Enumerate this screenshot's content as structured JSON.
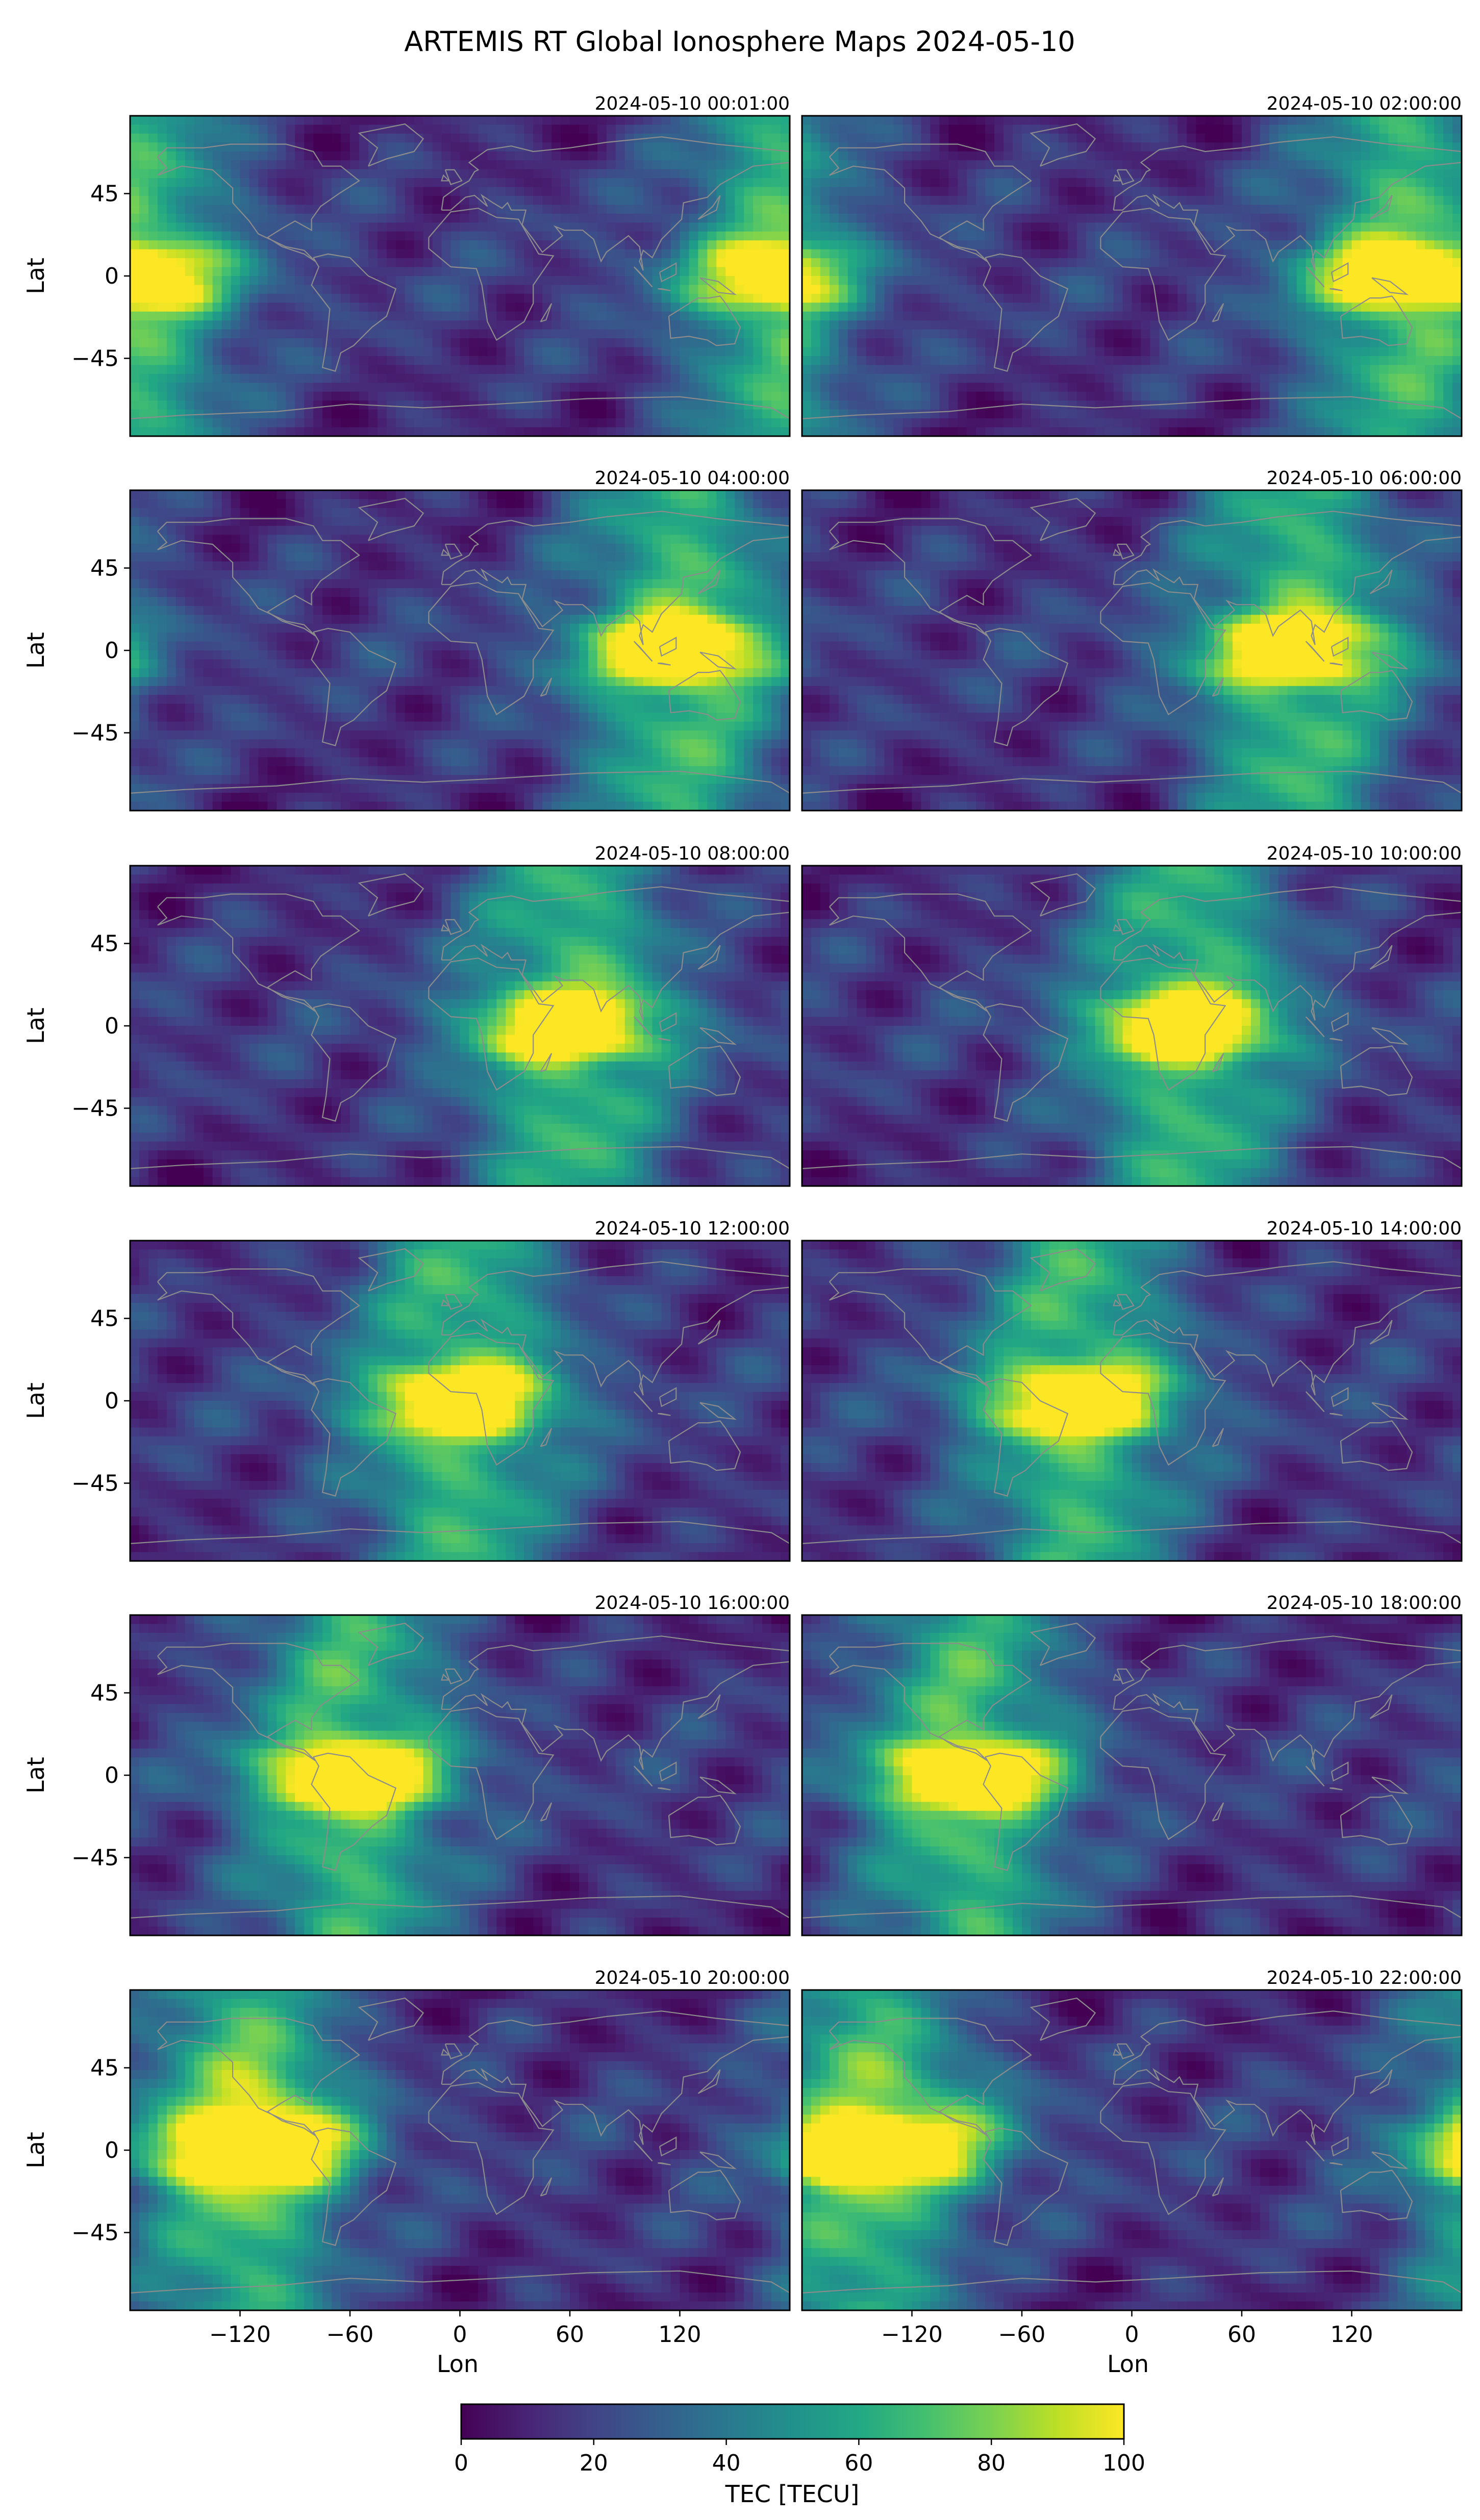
{
  "figure": {
    "title": "ARTEMIS RT Global Ionosphere Maps 2024-05-10"
  },
  "chart_data": {
    "type": "heatmap",
    "title": "ARTEMIS RT Global Ionosphere Maps 2024-05-10",
    "xlabel": "Lon",
    "ylabel": "Lat",
    "xlim": [
      -180,
      180
    ],
    "ylim": [
      -87.5,
      87.5
    ],
    "x_ticks": [
      "−120",
      "−60",
      "0",
      "60",
      "120"
    ],
    "x_tick_values": [
      -120,
      -60,
      0,
      60,
      120
    ],
    "y_ticks": [
      "45",
      "0",
      "−45"
    ],
    "y_tick_values": [
      45,
      0,
      -45
    ],
    "colormap": "viridis",
    "coastline_color": "#8c8c8c",
    "colorbar": {
      "label": "TEC [TECU]",
      "range": [
        0,
        100
      ],
      "ticks": [
        "0",
        "20",
        "40",
        "60",
        "80",
        "100"
      ],
      "tick_values": [
        0,
        20,
        40,
        60,
        80,
        100
      ]
    },
    "panels": [
      {
        "time": "2024-05-10 00:01:00",
        "subsolar_lon": 180,
        "peak_tecu": 100
      },
      {
        "time": "2024-05-10 02:00:00",
        "subsolar_lon": 150,
        "peak_tecu": 100
      },
      {
        "time": "2024-05-10 04:00:00",
        "subsolar_lon": 120,
        "peak_tecu": 100
      },
      {
        "time": "2024-05-10 06:00:00",
        "subsolar_lon": 90,
        "peak_tecu": 100
      },
      {
        "time": "2024-05-10 08:00:00",
        "subsolar_lon": 60,
        "peak_tecu": 100
      },
      {
        "time": "2024-05-10 10:00:00",
        "subsolar_lon": 30,
        "peak_tecu": 100
      },
      {
        "time": "2024-05-10 12:00:00",
        "subsolar_lon": 0,
        "peak_tecu": 95
      },
      {
        "time": "2024-05-10 14:00:00",
        "subsolar_lon": -30,
        "peak_tecu": 95
      },
      {
        "time": "2024-05-10 16:00:00",
        "subsolar_lon": -60,
        "peak_tecu": 100
      },
      {
        "time": "2024-05-10 18:00:00",
        "subsolar_lon": -90,
        "peak_tecu": 95
      },
      {
        "time": "2024-05-10 20:00:00",
        "subsolar_lon": -120,
        "peak_tecu": 100
      },
      {
        "time": "2024-05-10 22:00:00",
        "subsolar_lon": -150,
        "peak_tecu": 100
      }
    ]
  }
}
